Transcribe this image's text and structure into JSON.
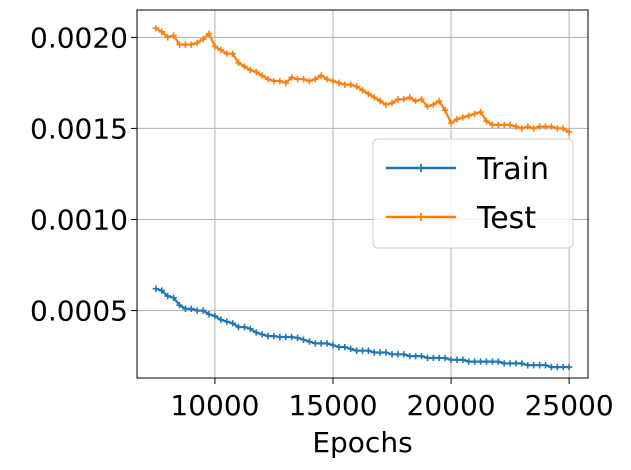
{
  "chart_data": {
    "type": "line",
    "title": "",
    "xlabel": "Epochs",
    "ylabel": "",
    "xlim": [
      6700,
      25800
    ],
    "ylim": [
      0.00013,
      0.00215
    ],
    "xticks": [
      10000,
      15000,
      20000,
      25000
    ],
    "xtick_labels": [
      "10000",
      "15000",
      "20000",
      "25000"
    ],
    "yticks": [
      0.0005,
      0.001,
      0.0015,
      0.002
    ],
    "ytick_labels": [
      "0.0005",
      "0.0010",
      "0.0015",
      "0.0020"
    ],
    "grid": true,
    "legend_position": "center-right",
    "series": [
      {
        "name": "Train",
        "color": "#1f77b4",
        "marker": "plus",
        "x": [
          7500,
          7750,
          8000,
          8250,
          8500,
          8750,
          9000,
          9250,
          9500,
          9750,
          10000,
          10250,
          10500,
          10750,
          11000,
          11250,
          11500,
          11750,
          12000,
          12250,
          12500,
          12750,
          13000,
          13250,
          13500,
          13750,
          14000,
          14250,
          14500,
          14750,
          15000,
          15250,
          15500,
          15750,
          16000,
          16250,
          16500,
          16750,
          17000,
          17250,
          17500,
          17750,
          18000,
          18250,
          18500,
          18750,
          19000,
          19250,
          19500,
          19750,
          20000,
          20250,
          20500,
          20750,
          21000,
          21250,
          21500,
          21750,
          22000,
          22250,
          22500,
          22750,
          23000,
          23250,
          23500,
          23750,
          24000,
          24250,
          24500,
          24750,
          25000
        ],
        "y": [
          0.00062,
          0.00061,
          0.00058,
          0.00057,
          0.00053,
          0.00051,
          0.00051,
          0.0005,
          0.0005,
          0.00048,
          0.00047,
          0.00045,
          0.00044,
          0.00043,
          0.00041,
          0.00041,
          0.0004,
          0.00038,
          0.00037,
          0.00036,
          0.00036,
          0.000355,
          0.000355,
          0.000355,
          0.00035,
          0.00034,
          0.00033,
          0.00032,
          0.00032,
          0.00032,
          0.00031,
          0.0003,
          0.0003,
          0.00029,
          0.00028,
          0.00028,
          0.00028,
          0.00027,
          0.00027,
          0.00027,
          0.00026,
          0.00026,
          0.00026,
          0.00025,
          0.00025,
          0.00025,
          0.00024,
          0.00024,
          0.00024,
          0.00024,
          0.00023,
          0.00023,
          0.00023,
          0.00022,
          0.00022,
          0.00022,
          0.00022,
          0.00022,
          0.00022,
          0.00021,
          0.00021,
          0.00021,
          0.00021,
          0.0002,
          0.0002,
          0.0002,
          0.0002,
          0.00019,
          0.00019,
          0.00019,
          0.00019
        ]
      },
      {
        "name": "Test",
        "color": "#ff7f0e",
        "marker": "plus",
        "x": [
          7500,
          7750,
          8000,
          8250,
          8500,
          8750,
          9000,
          9250,
          9500,
          9750,
          10000,
          10250,
          10500,
          10750,
          11000,
          11250,
          11500,
          11750,
          12000,
          12250,
          12500,
          12750,
          13000,
          13250,
          13500,
          13750,
          14000,
          14250,
          14500,
          14750,
          15000,
          15250,
          15500,
          15750,
          16000,
          16250,
          16500,
          16750,
          17000,
          17250,
          17500,
          17750,
          18000,
          18250,
          18500,
          18750,
          19000,
          19250,
          19500,
          19750,
          20000,
          20250,
          20500,
          20750,
          21000,
          21250,
          21500,
          21750,
          22000,
          22250,
          22500,
          22750,
          23000,
          23250,
          23500,
          23750,
          24000,
          24250,
          24500,
          24750,
          25000
        ],
        "y": [
          0.00205,
          0.00203,
          0.002,
          0.00201,
          0.00196,
          0.00196,
          0.00196,
          0.00197,
          0.00199,
          0.00202,
          0.00195,
          0.00193,
          0.00191,
          0.00191,
          0.00186,
          0.00184,
          0.00182,
          0.00181,
          0.00179,
          0.00177,
          0.00176,
          0.00176,
          0.00175,
          0.00178,
          0.00177,
          0.00177,
          0.00176,
          0.00177,
          0.00179,
          0.00177,
          0.00176,
          0.00175,
          0.00174,
          0.00174,
          0.00173,
          0.00171,
          0.00169,
          0.00167,
          0.00165,
          0.00163,
          0.00164,
          0.00166,
          0.00166,
          0.00167,
          0.00165,
          0.00166,
          0.00162,
          0.00163,
          0.00165,
          0.0016,
          0.00153,
          0.00155,
          0.00156,
          0.00157,
          0.00158,
          0.00159,
          0.00154,
          0.00152,
          0.00152,
          0.00152,
          0.00152,
          0.00151,
          0.0015,
          0.00151,
          0.0015,
          0.00151,
          0.00151,
          0.00151,
          0.0015,
          0.0015,
          0.00148
        ]
      }
    ]
  }
}
